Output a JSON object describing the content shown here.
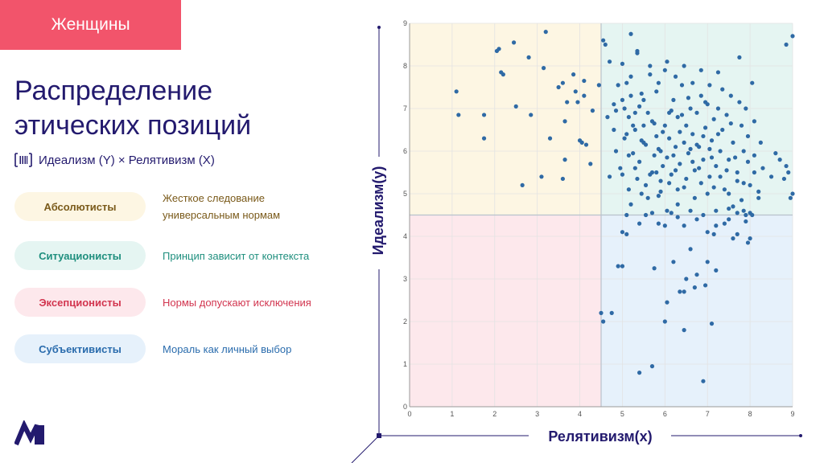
{
  "header": {
    "tag": "Женщины"
  },
  "title": {
    "line1": "Распределение",
    "line2": "этических позиций"
  },
  "subtitle": {
    "text": "Идеализм (Y) × Релятивизм (X)",
    "icon": "barcode-icon"
  },
  "categories": [
    {
      "name": "Абсолютисты",
      "description_line1": "Жесткое следование",
      "description_line2": "универсальным нормам",
      "bg": "#fdf6e3",
      "color": "#7a5a1a",
      "desc_color": "#7a5a1a"
    },
    {
      "name": "Ситуационисты",
      "description": "Принцип зависит от контекста",
      "bg": "#e5f5f2",
      "color": "#1f8f7e",
      "desc_color": "#1f8f7e"
    },
    {
      "name": "Эксепционисты",
      "description": "Нормы допускают исключения",
      "bg": "#fde8ec",
      "color": "#d2354f",
      "desc_color": "#d2354f"
    },
    {
      "name": "Субъективисты",
      "description": "Мораль как личный выбор",
      "bg": "#e6f1fb",
      "color": "#2a6cad",
      "desc_color": "#2a6cad"
    }
  ],
  "colors": {
    "accent": "#231a6e",
    "point": "#2f6aa5",
    "tag": "#f2546b"
  },
  "chart_data": {
    "type": "scatter",
    "xlabel": "Релятивизм(x)",
    "ylabel": "Идеализм(y)",
    "xlim": [
      0,
      9
    ],
    "ylim": [
      0,
      9
    ],
    "x_ticks": [
      "0",
      "1",
      "2",
      "3",
      "4",
      "5",
      "6",
      "7",
      "8",
      "9"
    ],
    "y_ticks": [
      "0",
      "1",
      "2",
      "3",
      "4",
      "5",
      "6",
      "7",
      "8",
      "9"
    ],
    "divider_x": 4.5,
    "divider_y": 4.5,
    "quadrant_colors": {
      "top_left": "#fdf6e3",
      "top_right": "#e5f5f2",
      "bottom_left": "#fde8ec",
      "bottom_right": "#e6f1fb"
    },
    "grid": true,
    "points": [
      [
        1.1,
        7.4
      ],
      [
        1.15,
        6.85
      ],
      [
        1.75,
        6.85
      ],
      [
        1.75,
        6.3
      ],
      [
        2.05,
        8.35
      ],
      [
        2.1,
        8.4
      ],
      [
        2.15,
        7.85
      ],
      [
        2.2,
        7.8
      ],
      [
        2.45,
        8.55
      ],
      [
        2.5,
        7.05
      ],
      [
        2.65,
        5.2
      ],
      [
        2.8,
        8.2
      ],
      [
        2.85,
        6.85
      ],
      [
        3.1,
        5.4
      ],
      [
        3.15,
        7.95
      ],
      [
        3.2,
        8.8
      ],
      [
        3.3,
        6.3
      ],
      [
        3.5,
        7.5
      ],
      [
        3.6,
        7.6
      ],
      [
        3.6,
        5.35
      ],
      [
        3.65,
        6.7
      ],
      [
        3.65,
        5.8
      ],
      [
        3.7,
        7.15
      ],
      [
        3.85,
        7.8
      ],
      [
        3.9,
        7.4
      ],
      [
        3.95,
        7.15
      ],
      [
        4.0,
        6.25
      ],
      [
        4.05,
        6.2
      ],
      [
        4.1,
        7.65
      ],
      [
        4.1,
        7.3
      ],
      [
        4.15,
        6.15
      ],
      [
        4.25,
        5.7
      ],
      [
        4.3,
        6.95
      ],
      [
        4.45,
        7.55
      ],
      [
        4.5,
        2.2
      ],
      [
        4.55,
        2.0
      ],
      [
        4.55,
        8.6
      ],
      [
        4.6,
        8.5
      ],
      [
        4.65,
        6.8
      ],
      [
        4.7,
        5.4
      ],
      [
        4.75,
        2.2
      ],
      [
        4.8,
        6.5
      ],
      [
        4.85,
        6.95
      ],
      [
        4.9,
        3.3
      ],
      [
        5.0,
        3.3
      ],
      [
        5.0,
        4.1
      ],
      [
        5.1,
        4.05
      ],
      [
        5.1,
        6.4
      ],
      [
        5.2,
        8.75
      ],
      [
        5.3,
        6.5
      ],
      [
        5.35,
        8.3
      ],
      [
        5.4,
        0.8
      ],
      [
        5.5,
        7.2
      ],
      [
        5.7,
        0.95
      ],
      [
        5.75,
        3.25
      ],
      [
        5.8,
        5.5
      ],
      [
        5.9,
        6.0
      ],
      [
        6.0,
        2.0
      ],
      [
        6.05,
        2.45
      ],
      [
        6.1,
        6.9
      ],
      [
        6.2,
        3.4
      ],
      [
        6.3,
        5.1
      ],
      [
        6.35,
        2.7
      ],
      [
        6.45,
        2.7
      ],
      [
        6.45,
        1.8
      ],
      [
        6.5,
        3.0
      ],
      [
        6.6,
        3.7
      ],
      [
        6.7,
        2.8
      ],
      [
        6.75,
        3.1
      ],
      [
        6.9,
        0.6
      ],
      [
        6.95,
        2.85
      ],
      [
        7.0,
        3.4
      ],
      [
        7.1,
        1.95
      ],
      [
        7.15,
        4.05
      ],
      [
        7.2,
        3.2
      ],
      [
        7.5,
        4.4
      ],
      [
        7.6,
        3.95
      ],
      [
        7.7,
        4.05
      ],
      [
        7.75,
        8.2
      ],
      [
        7.9,
        4.5
      ],
      [
        8.0,
        4.55
      ],
      [
        8.0,
        3.95
      ],
      [
        8.05,
        4.5
      ],
      [
        8.1,
        5.5
      ],
      [
        8.2,
        5.05
      ],
      [
        8.5,
        5.4
      ],
      [
        8.6,
        5.95
      ],
      [
        8.7,
        5.8
      ],
      [
        8.8,
        5.35
      ],
      [
        8.85,
        5.65
      ],
      [
        8.9,
        5.5
      ],
      [
        8.95,
        4.9
      ],
      [
        9.0,
        8.7
      ],
      [
        9.0,
        5.0
      ],
      [
        8.85,
        8.5
      ],
      [
        4.7,
        8.1
      ],
      [
        4.8,
        7.1
      ],
      [
        4.9,
        7.55
      ],
      [
        5.0,
        7.2
      ],
      [
        5.05,
        7.0
      ],
      [
        5.1,
        7.6
      ],
      [
        5.15,
        6.8
      ],
      [
        5.2,
        7.3
      ],
      [
        5.25,
        5.95
      ],
      [
        5.3,
        5.6
      ],
      [
        5.35,
        8.35
      ],
      [
        5.4,
        7.05
      ],
      [
        5.45,
        6.25
      ],
      [
        5.5,
        6.6
      ],
      [
        5.55,
        5.2
      ],
      [
        5.6,
        6.9
      ],
      [
        5.65,
        7.8
      ],
      [
        5.7,
        6.7
      ],
      [
        5.75,
        5.9
      ],
      [
        5.8,
        7.4
      ],
      [
        5.85,
        6.05
      ],
      [
        5.9,
        5.3
      ],
      [
        5.95,
        6.45
      ],
      [
        6.0,
        7.9
      ],
      [
        6.05,
        5.85
      ],
      [
        6.1,
        6.3
      ],
      [
        6.15,
        5.45
      ],
      [
        6.2,
        7.2
      ],
      [
        6.25,
        6.1
      ],
      [
        6.3,
        6.8
      ],
      [
        6.35,
        5.7
      ],
      [
        6.4,
        7.55
      ],
      [
        6.45,
        6.2
      ],
      [
        6.5,
        6.6
      ],
      [
        6.55,
        5.95
      ],
      [
        6.6,
        7.0
      ],
      [
        6.65,
        6.4
      ],
      [
        6.7,
        5.55
      ],
      [
        6.75,
        6.9
      ],
      [
        6.8,
        6.1
      ],
      [
        6.85,
        7.3
      ],
      [
        6.9,
        5.8
      ],
      [
        6.95,
        6.55
      ],
      [
        7.0,
        7.1
      ],
      [
        7.05,
        5.4
      ],
      [
        7.1,
        6.25
      ],
      [
        7.15,
        6.75
      ],
      [
        7.2,
        5.65
      ],
      [
        7.25,
        7.0
      ],
      [
        7.3,
        6.0
      ],
      [
        7.35,
        6.5
      ],
      [
        7.4,
        5.1
      ],
      [
        7.45,
        6.85
      ],
      [
        7.5,
        5.8
      ],
      [
        7.55,
        7.3
      ],
      [
        7.6,
        6.2
      ],
      [
        7.7,
        5.5
      ],
      [
        7.8,
        6.6
      ],
      [
        7.85,
        5.25
      ],
      [
        7.9,
        7.0
      ],
      [
        7.95,
        6.35
      ],
      [
        8.0,
        5.2
      ],
      [
        8.05,
        7.6
      ],
      [
        8.1,
        6.7
      ],
      [
        8.2,
        4.9
      ],
      [
        8.3,
        5.6
      ],
      [
        5.0,
        5.45
      ],
      [
        5.15,
        5.9
      ],
      [
        5.3,
        6.9
      ],
      [
        5.4,
        5.75
      ],
      [
        5.5,
        6.2
      ],
      [
        5.6,
        4.9
      ],
      [
        5.7,
        5.5
      ],
      [
        5.8,
        6.35
      ],
      [
        5.9,
        5.05
      ],
      [
        6.0,
        6.6
      ],
      [
        6.1,
        5.25
      ],
      [
        6.2,
        5.9
      ],
      [
        6.3,
        4.75
      ],
      [
        6.4,
        6.85
      ],
      [
        6.5,
        5.35
      ],
      [
        6.6,
        6.05
      ],
      [
        6.7,
        4.9
      ],
      [
        6.8,
        5.6
      ],
      [
        6.9,
        6.35
      ],
      [
        7.0,
        5.0
      ],
      [
        7.1,
        5.85
      ],
      [
        7.2,
        4.6
      ],
      [
        7.3,
        5.4
      ],
      [
        7.4,
        4.3
      ],
      [
        7.5,
        5.0
      ],
      [
        7.6,
        4.7
      ],
      [
        7.7,
        5.3
      ],
      [
        7.8,
        4.85
      ],
      [
        7.9,
        4.35
      ],
      [
        5.2,
        4.75
      ],
      [
        5.55,
        4.5
      ],
      [
        5.85,
        4.3
      ],
      [
        6.15,
        4.55
      ],
      [
        6.45,
        4.25
      ],
      [
        6.75,
        4.4
      ],
      [
        7.0,
        4.1
      ],
      [
        5.0,
        8.05
      ],
      [
        5.2,
        7.75
      ],
      [
        5.45,
        7.35
      ],
      [
        5.65,
        8.0
      ],
      [
        5.85,
        7.6
      ],
      [
        6.05,
        8.1
      ],
      [
        6.25,
        7.75
      ],
      [
        6.45,
        8.0
      ],
      [
        6.65,
        7.6
      ],
      [
        6.85,
        7.9
      ],
      [
        7.05,
        7.55
      ],
      [
        7.25,
        7.85
      ],
      [
        4.85,
        6.0
      ],
      [
        4.95,
        5.6
      ],
      [
        5.05,
        6.3
      ],
      [
        5.15,
        5.1
      ],
      [
        5.25,
        6.6
      ],
      [
        5.35,
        5.35
      ],
      [
        5.45,
        5.0
      ],
      [
        5.55,
        6.15
      ],
      [
        5.65,
        5.45
      ],
      [
        5.75,
        6.65
      ],
      [
        5.85,
        4.95
      ],
      [
        5.95,
        5.65
      ],
      [
        6.05,
        4.6
      ],
      [
        6.15,
        6.95
      ],
      [
        6.25,
        5.55
      ],
      [
        6.35,
        6.45
      ],
      [
        6.45,
        5.15
      ],
      [
        6.55,
        7.25
      ],
      [
        6.65,
        5.75
      ],
      [
        6.75,
        6.15
      ],
      [
        6.85,
        5.25
      ],
      [
        6.95,
        7.15
      ],
      [
        7.05,
        6.05
      ],
      [
        7.15,
        5.15
      ],
      [
        7.25,
        6.4
      ],
      [
        7.35,
        7.45
      ],
      [
        7.45,
        5.55
      ],
      [
        7.55,
        6.65
      ],
      [
        7.65,
        5.85
      ],
      [
        7.75,
        7.15
      ],
      [
        7.85,
        6.0
      ],
      [
        7.95,
        5.75
      ],
      [
        8.1,
        5.9
      ],
      [
        8.25,
        6.2
      ],
      [
        5.1,
        4.5
      ],
      [
        5.4,
        4.3
      ],
      [
        5.7,
        4.55
      ],
      [
        6.0,
        4.25
      ],
      [
        6.3,
        4.45
      ],
      [
        6.6,
        4.6
      ],
      [
        6.9,
        4.5
      ],
      [
        7.2,
        4.25
      ],
      [
        7.5,
        4.65
      ],
      [
        7.7,
        4.55
      ],
      [
        7.85,
        4.6
      ],
      [
        7.95,
        3.85
      ]
    ]
  }
}
